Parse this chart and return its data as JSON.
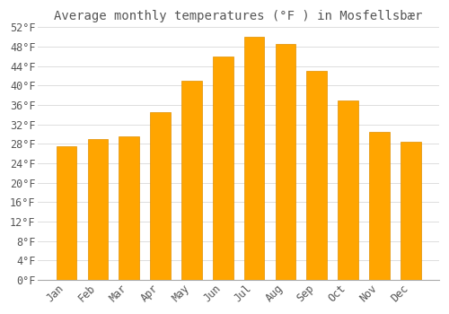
{
  "title": "Average monthly temperatures (°F ) in Mosfellsbær",
  "months": [
    "Jan",
    "Feb",
    "Mar",
    "Apr",
    "May",
    "Jun",
    "Jul",
    "Aug",
    "Sep",
    "Oct",
    "Nov",
    "Dec"
  ],
  "values": [
    27.5,
    29.0,
    29.5,
    34.5,
    41.0,
    46.0,
    50.0,
    48.5,
    43.0,
    37.0,
    30.5,
    28.4
  ],
  "bar_color": "#FFA500",
  "bar_edge_color": "#E09000",
  "background_color": "#FFFFFF",
  "grid_color": "#DDDDDD",
  "text_color": "#555555",
  "ylim": [
    0,
    52
  ],
  "yticks": [
    0,
    4,
    8,
    12,
    16,
    20,
    24,
    28,
    32,
    36,
    40,
    44,
    48,
    52
  ],
  "title_fontsize": 10,
  "tick_fontsize": 8.5,
  "font_family": "monospace"
}
